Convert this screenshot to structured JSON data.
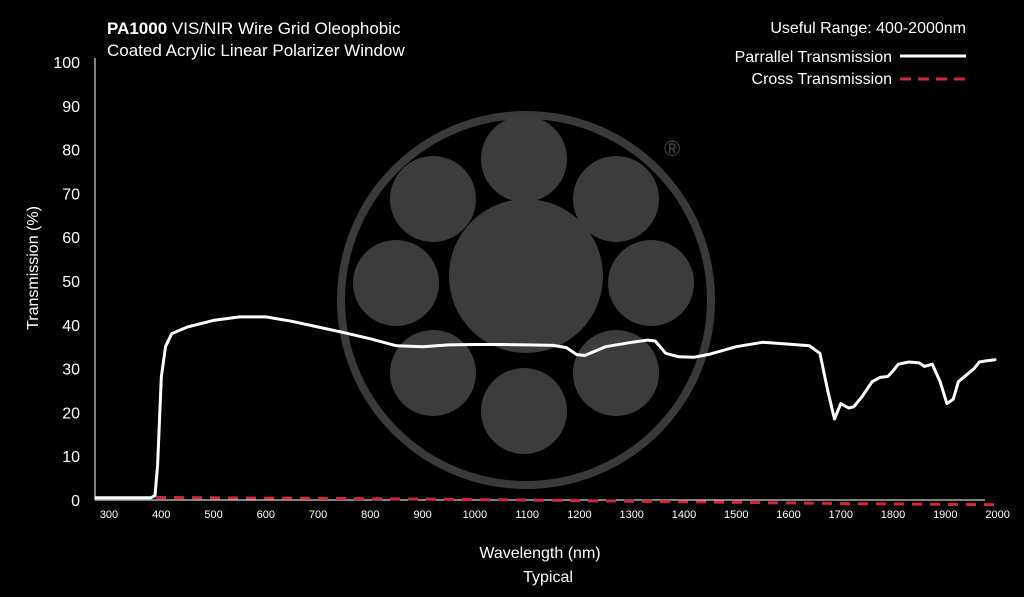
{
  "colors": {
    "background": "#000000",
    "text": "#ffffff",
    "parallel_line": "#ffffff",
    "cross_line": "#d0273a",
    "watermark": "#3c3c3c",
    "watermark_ring": "#3a3a3a"
  },
  "header": {
    "title_bold": "PA1000",
    "title_rest": " VIS/NIR Wire Grid Oleophobic",
    "title_line2": "Coated Acrylic Linear Polarizer Window",
    "useful_range": "Useful Range: 400-2000nm"
  },
  "watermark": {
    "icon": "logo-circle-icon",
    "registered_mark": "®"
  },
  "chart_data": {
    "type": "line",
    "title": "PA1000 VIS/NIR Wire Grid Oleophobic Coated Acrylic Linear Polarizer Window",
    "xlabel": "Wavelength (nm)",
    "xlabel_sub": "Typical",
    "ylabel": "Transmission (%)",
    "xlim": [
      275,
      2000
    ],
    "ylim": [
      0,
      100
    ],
    "x_ticks": [
      300,
      400,
      500,
      600,
      700,
      800,
      900,
      1000,
      1100,
      1200,
      1300,
      1400,
      1500,
      1600,
      1700,
      1800,
      1900,
      2000
    ],
    "y_ticks": [
      0,
      10,
      20,
      30,
      40,
      50,
      60,
      70,
      80,
      90,
      100
    ],
    "grid": false,
    "legend_position": "top-right",
    "series": [
      {
        "name": "Parrallel Transmission",
        "style": "solid",
        "points": [
          [
            275,
            0.5
          ],
          [
            380,
            0.5
          ],
          [
            388,
            1
          ],
          [
            393,
            8
          ],
          [
            400,
            28
          ],
          [
            408,
            35
          ],
          [
            420,
            38
          ],
          [
            450,
            39.5
          ],
          [
            500,
            41
          ],
          [
            550,
            41.8
          ],
          [
            600,
            41.8
          ],
          [
            650,
            40.8
          ],
          [
            700,
            39.5
          ],
          [
            750,
            38.2
          ],
          [
            800,
            36.8
          ],
          [
            850,
            35.2
          ],
          [
            900,
            35.0
          ],
          [
            950,
            35.4
          ],
          [
            1000,
            35.5
          ],
          [
            1050,
            35.5
          ],
          [
            1100,
            35.4
          ],
          [
            1150,
            35.3
          ],
          [
            1175,
            34.8
          ],
          [
            1195,
            33.2
          ],
          [
            1210,
            33.0
          ],
          [
            1230,
            34.0
          ],
          [
            1250,
            35.0
          ],
          [
            1300,
            36.0
          ],
          [
            1330,
            36.5
          ],
          [
            1345,
            36.3
          ],
          [
            1365,
            33.5
          ],
          [
            1390,
            32.7
          ],
          [
            1420,
            32.6
          ],
          [
            1450,
            33.3
          ],
          [
            1500,
            35.0
          ],
          [
            1550,
            36.0
          ],
          [
            1600,
            35.6
          ],
          [
            1640,
            35.2
          ],
          [
            1660,
            33.5
          ],
          [
            1675,
            25
          ],
          [
            1688,
            18.5
          ],
          [
            1700,
            22
          ],
          [
            1715,
            21
          ],
          [
            1725,
            21.3
          ],
          [
            1740,
            23.5
          ],
          [
            1760,
            27
          ],
          [
            1775,
            28
          ],
          [
            1790,
            28.2
          ],
          [
            1800,
            29.5
          ],
          [
            1810,
            31
          ],
          [
            1830,
            31.5
          ],
          [
            1850,
            31.3
          ],
          [
            1860,
            30.5
          ],
          [
            1875,
            31
          ],
          [
            1890,
            27
          ],
          [
            1903,
            22
          ],
          [
            1915,
            23
          ],
          [
            1925,
            27
          ],
          [
            1940,
            28.5
          ],
          [
            1955,
            30
          ],
          [
            1965,
            31.5
          ],
          [
            1980,
            31.8
          ],
          [
            1995,
            32
          ]
        ]
      },
      {
        "name": "Cross Transmission",
        "style": "dashed",
        "points": [
          [
            390,
            0.6
          ],
          [
            500,
            0.5
          ],
          [
            800,
            0.3
          ],
          [
            1100,
            0.0
          ],
          [
            1400,
            -0.4
          ],
          [
            1700,
            -0.8
          ],
          [
            2000,
            -1.1
          ]
        ]
      }
    ]
  }
}
